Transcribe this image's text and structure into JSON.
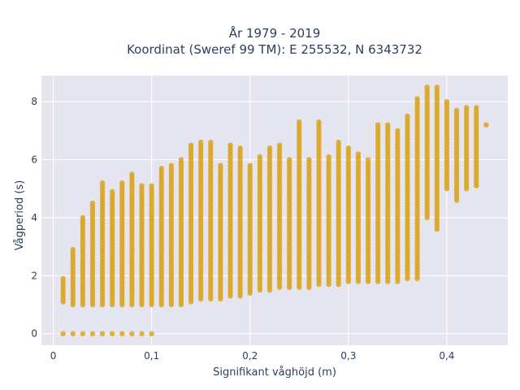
{
  "chart_data": {
    "type": "scatter",
    "title_line1": "År 1979 - 2019",
    "title_line2": "Koordinat (Sweref 99 TM): E 255532, N 6343732",
    "xlabel": "Signifikant våghöjd (m)",
    "ylabel": "Vågperiod (s)",
    "xlim": [
      -0.012,
      0.462
    ],
    "ylim": [
      -0.4,
      8.9
    ],
    "x_ticks": [
      0,
      0.1,
      0.2,
      0.3,
      0.4
    ],
    "x_tick_labels": [
      "0",
      "0,1",
      "0,2",
      "0,3",
      "0,4"
    ],
    "y_ticks": [
      0,
      2,
      4,
      6,
      8
    ],
    "y_tick_labels": [
      "0",
      "2",
      "4",
      "6",
      "8"
    ],
    "grid": true,
    "marker_color": "#DAA520",
    "plot_bg": "#E5E5F0",
    "column_step": 0.01,
    "columns": [
      {
        "x": 0.01,
        "lo": 1.1,
        "hi": 1.9,
        "zero": true
      },
      {
        "x": 0.02,
        "lo": 1.0,
        "hi": 2.9,
        "zero": true
      },
      {
        "x": 0.03,
        "lo": 1.0,
        "hi": 4.0,
        "zero": true
      },
      {
        "x": 0.04,
        "lo": 1.0,
        "hi": 4.5,
        "zero": true
      },
      {
        "x": 0.05,
        "lo": 1.0,
        "hi": 5.2,
        "zero": true
      },
      {
        "x": 0.06,
        "lo": 1.0,
        "hi": 4.9,
        "zero": true
      },
      {
        "x": 0.07,
        "lo": 1.0,
        "hi": 5.2,
        "zero": true
      },
      {
        "x": 0.08,
        "lo": 1.0,
        "hi": 5.5,
        "zero": true
      },
      {
        "x": 0.09,
        "lo": 1.0,
        "hi": 5.1,
        "zero": true
      },
      {
        "x": 0.1,
        "lo": 1.0,
        "hi": 5.1,
        "zero": true
      },
      {
        "x": 0.11,
        "lo": 1.0,
        "hi": 5.7,
        "zero": false
      },
      {
        "x": 0.12,
        "lo": 1.0,
        "hi": 5.8,
        "zero": false
      },
      {
        "x": 0.13,
        "lo": 1.0,
        "hi": 6.0,
        "zero": false
      },
      {
        "x": 0.14,
        "lo": 1.1,
        "hi": 6.5,
        "zero": false
      },
      {
        "x": 0.15,
        "lo": 1.2,
        "hi": 6.6,
        "zero": false
      },
      {
        "x": 0.16,
        "lo": 1.2,
        "hi": 6.6,
        "zero": false
      },
      {
        "x": 0.17,
        "lo": 1.2,
        "hi": 5.8,
        "zero": false
      },
      {
        "x": 0.18,
        "lo": 1.3,
        "hi": 6.5,
        "zero": false
      },
      {
        "x": 0.19,
        "lo": 1.3,
        "hi": 6.4,
        "zero": false
      },
      {
        "x": 0.2,
        "lo": 1.4,
        "hi": 5.8,
        "zero": false
      },
      {
        "x": 0.21,
        "lo": 1.5,
        "hi": 6.1,
        "zero": false
      },
      {
        "x": 0.22,
        "lo": 1.5,
        "hi": 6.4,
        "zero": false
      },
      {
        "x": 0.23,
        "lo": 1.6,
        "hi": 6.5,
        "zero": false
      },
      {
        "x": 0.24,
        "lo": 1.6,
        "hi": 6.0,
        "zero": false
      },
      {
        "x": 0.25,
        "lo": 1.6,
        "hi": 7.3,
        "zero": false
      },
      {
        "x": 0.26,
        "lo": 1.6,
        "hi": 6.0,
        "zero": false
      },
      {
        "x": 0.27,
        "lo": 1.7,
        "hi": 7.3,
        "zero": false
      },
      {
        "x": 0.28,
        "lo": 1.7,
        "hi": 6.1,
        "zero": false
      },
      {
        "x": 0.29,
        "lo": 1.7,
        "hi": 6.6,
        "zero": false
      },
      {
        "x": 0.3,
        "lo": 1.8,
        "hi": 6.4,
        "zero": false
      },
      {
        "x": 0.31,
        "lo": 1.8,
        "hi": 6.2,
        "zero": false
      },
      {
        "x": 0.32,
        "lo": 1.8,
        "hi": 6.0,
        "zero": false
      },
      {
        "x": 0.33,
        "lo": 1.8,
        "hi": 7.2,
        "zero": false
      },
      {
        "x": 0.34,
        "lo": 1.8,
        "hi": 7.2,
        "zero": false
      },
      {
        "x": 0.35,
        "lo": 1.8,
        "hi": 7.0,
        "zero": false
      },
      {
        "x": 0.36,
        "lo": 1.9,
        "hi": 7.5,
        "zero": false
      },
      {
        "x": 0.37,
        "lo": 1.9,
        "hi": 8.1,
        "zero": false
      },
      {
        "x": 0.38,
        "lo": 4.0,
        "hi": 8.5,
        "zero": false
      },
      {
        "x": 0.39,
        "lo": 3.6,
        "hi": 8.5,
        "zero": false
      },
      {
        "x": 0.4,
        "lo": 5.0,
        "hi": 8.0,
        "zero": false
      },
      {
        "x": 0.41,
        "lo": 4.6,
        "hi": 7.7,
        "zero": false
      },
      {
        "x": 0.42,
        "lo": 5.0,
        "hi": 7.8,
        "zero": false
      },
      {
        "x": 0.43,
        "lo": 5.1,
        "hi": 7.8,
        "zero": false
      },
      {
        "x": 0.44,
        "lo": 7.2,
        "hi": 7.2,
        "zero": false
      }
    ]
  }
}
